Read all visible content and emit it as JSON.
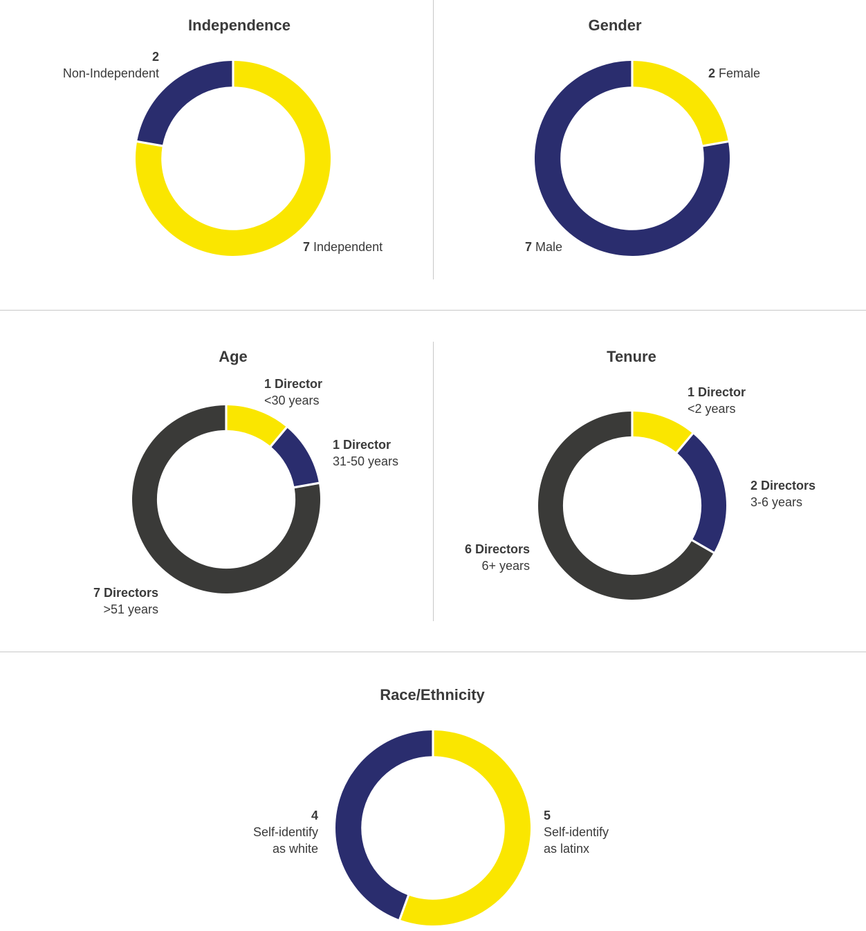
{
  "colors": {
    "yellow": "#fae600",
    "navy": "#2a2d6e",
    "dark": "#3a3a38"
  },
  "chart_data": [
    {
      "id": "independence",
      "type": "pie",
      "title": "Independence",
      "slices": [
        {
          "value": 7,
          "count": "7",
          "label": "Independent",
          "color": "yellow"
        },
        {
          "value": 2,
          "count": "2",
          "label": "Non-Independent",
          "color": "navy"
        }
      ]
    },
    {
      "id": "gender",
      "type": "pie",
      "title": "Gender",
      "slices": [
        {
          "value": 2,
          "count": "2",
          "label": "Female",
          "color": "yellow"
        },
        {
          "value": 7,
          "count": "7",
          "label": "Male",
          "color": "navy"
        }
      ]
    },
    {
      "id": "age",
      "type": "pie",
      "title": "Age",
      "slices": [
        {
          "value": 1,
          "count": "1 Director",
          "label": "<30 years",
          "color": "yellow"
        },
        {
          "value": 1,
          "count": "1 Director",
          "label": "31-50 years",
          "color": "navy"
        },
        {
          "value": 7,
          "count": "7 Directors",
          "label": ">51 years",
          "color": "dark"
        }
      ]
    },
    {
      "id": "tenure",
      "type": "pie",
      "title": "Tenure",
      "slices": [
        {
          "value": 1,
          "count": "1 Director",
          "label": "<2 years",
          "color": "yellow"
        },
        {
          "value": 2,
          "count": "2 Directors",
          "label": "3-6 years",
          "color": "navy"
        },
        {
          "value": 6,
          "count": "6 Directors",
          "label": "6+ years",
          "color": "dark"
        }
      ]
    },
    {
      "id": "race",
      "type": "pie",
      "title": "Race/Ethnicity",
      "slices": [
        {
          "value": 5,
          "count": "5",
          "label": "Self-identify",
          "label2": "as latinx",
          "color": "yellow"
        },
        {
          "value": 4,
          "count": "4",
          "label": "Self-identify",
          "label2": "as white",
          "color": "navy"
        }
      ]
    }
  ]
}
